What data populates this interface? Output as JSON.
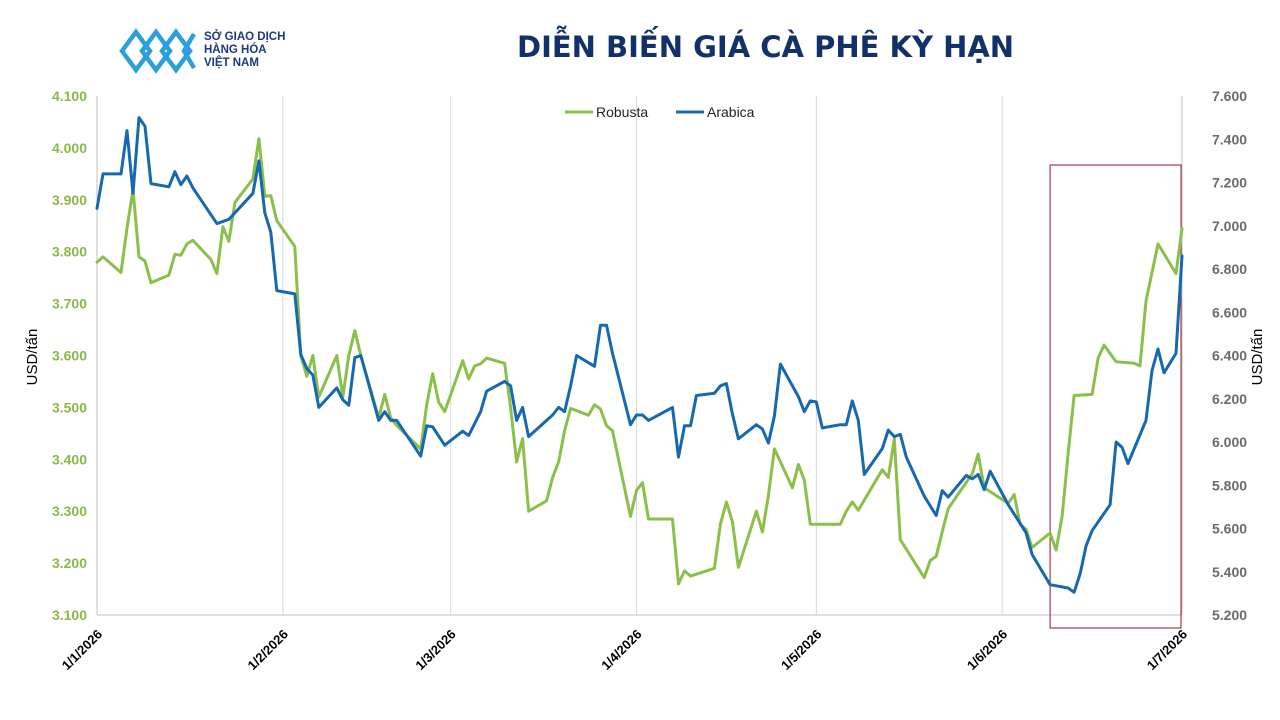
{
  "logo": {
    "line1": "SỞ GIAO DỊCH",
    "line2": "HÀNG HÓA",
    "line3": "VIỆT NAM"
  },
  "colors": {
    "robusta": "#8cbf4a",
    "arabica": "#1668b0",
    "highlight": "#a83a48",
    "grid": "#d9d9d9",
    "title": "#12316b"
  },
  "chart_data": {
    "type": "line",
    "title": "DIỄN BIẾN GIÁ CÀ PHÊ KỲ HẠN",
    "xlabel": "",
    "ylabel_left": "USD/tấn",
    "ylabel_right": "USD/tấn",
    "xlim": [
      "2026-01-01",
      "2026-07-01"
    ],
    "ylim_left": [
      3100,
      4100
    ],
    "ylim_right": [
      5200,
      7600
    ],
    "y_ticks_left": [
      "3.100",
      "3.200",
      "3.300",
      "3.400",
      "3.500",
      "3.600",
      "3.700",
      "3.800",
      "3.900",
      "4.000",
      "4.100"
    ],
    "y_ticks_right": [
      "5.200",
      "5.400",
      "5.600",
      "5.800",
      "6.000",
      "6.200",
      "6.400",
      "6.600",
      "6.800",
      "7.000",
      "7.200",
      "7.400",
      "7.600"
    ],
    "x_ticks": [
      {
        "label": "1/1/2026",
        "date": "2026-01-01"
      },
      {
        "label": "1/2/2026",
        "date": "2026-02-01"
      },
      {
        "label": "1/3/2026",
        "date": "2026-03-01"
      },
      {
        "label": "1/4/2026",
        "date": "2026-04-01"
      },
      {
        "label": "1/5/2026",
        "date": "2026-05-01"
      },
      {
        "label": "1/6/2026",
        "date": "2026-06-01"
      },
      {
        "label": "1/7/2026",
        "date": "2026-07-01"
      }
    ],
    "grid": "vertical",
    "legend": "top-center",
    "highlight_range": {
      "from": "2026-06-09",
      "to": "2026-06-30"
    },
    "series": [
      {
        "name": "Robusta",
        "axis": "left",
        "points": [
          [
            "2026-01-01",
            3780
          ],
          [
            "2026-01-02",
            3790
          ],
          [
            "2026-01-05",
            3760
          ],
          [
            "2026-01-06",
            3845
          ],
          [
            "2026-01-07",
            3920
          ],
          [
            "2026-01-08",
            3790
          ],
          [
            "2026-01-09",
            3782
          ],
          [
            "2026-01-10",
            3740
          ],
          [
            "2026-01-13",
            3755
          ],
          [
            "2026-01-14",
            3795
          ],
          [
            "2026-01-15",
            3793
          ],
          [
            "2026-01-16",
            3815
          ],
          [
            "2026-01-17",
            3822
          ],
          [
            "2026-01-20",
            3785
          ],
          [
            "2026-01-21",
            3758
          ],
          [
            "2026-01-22",
            3848
          ],
          [
            "2026-01-23",
            3820
          ],
          [
            "2026-01-24",
            3895
          ],
          [
            "2026-01-27",
            3940
          ],
          [
            "2026-01-28",
            4018
          ],
          [
            "2026-01-29",
            3907
          ],
          [
            "2026-01-30",
            3908
          ],
          [
            "2026-01-31",
            3860
          ],
          [
            "2026-02-03",
            3810
          ],
          [
            "2026-02-04",
            3600
          ],
          [
            "2026-02-05",
            3560
          ],
          [
            "2026-02-06",
            3600
          ],
          [
            "2026-02-07",
            3520
          ],
          [
            "2026-02-10",
            3600
          ],
          [
            "2026-02-11",
            3520
          ],
          [
            "2026-02-12",
            3600
          ],
          [
            "2026-02-13",
            3648
          ],
          [
            "2026-02-14",
            3600
          ],
          [
            "2026-02-17",
            3480
          ],
          [
            "2026-02-18",
            3525
          ],
          [
            "2026-02-19",
            3480
          ],
          [
            "2026-02-20",
            3465
          ],
          [
            "2026-02-24",
            3420
          ],
          [
            "2026-02-25",
            3505
          ],
          [
            "2026-02-26",
            3565
          ],
          [
            "2026-02-27",
            3510
          ],
          [
            "2026-02-28",
            3492
          ],
          [
            "2026-03-03",
            3590
          ],
          [
            "2026-03-04",
            3555
          ],
          [
            "2026-03-05",
            3580
          ],
          [
            "2026-03-06",
            3584
          ],
          [
            "2026-03-07",
            3595
          ],
          [
            "2026-03-10",
            3585
          ],
          [
            "2026-03-11",
            3500
          ],
          [
            "2026-03-12",
            3395
          ],
          [
            "2026-03-13",
            3440
          ],
          [
            "2026-03-14",
            3300
          ],
          [
            "2026-03-17",
            3320
          ],
          [
            "2026-03-18",
            3365
          ],
          [
            "2026-03-19",
            3395
          ],
          [
            "2026-03-20",
            3455
          ],
          [
            "2026-03-21",
            3498
          ],
          [
            "2026-03-24",
            3485
          ],
          [
            "2026-03-25",
            3505
          ],
          [
            "2026-03-26",
            3497
          ],
          [
            "2026-03-27",
            3465
          ],
          [
            "2026-03-28",
            3455
          ],
          [
            "2026-03-31",
            3290
          ],
          [
            "2026-04-01",
            3340
          ],
          [
            "2026-04-02",
            3355
          ],
          [
            "2026-04-03",
            3285
          ],
          [
            "2026-04-07",
            3285
          ],
          [
            "2026-04-08",
            3160
          ],
          [
            "2026-04-09",
            3185
          ],
          [
            "2026-04-10",
            3175
          ],
          [
            "2026-04-14",
            3190
          ],
          [
            "2026-04-15",
            3275
          ],
          [
            "2026-04-16",
            3318
          ],
          [
            "2026-04-17",
            3280
          ],
          [
            "2026-04-18",
            3192
          ],
          [
            "2026-04-21",
            3300
          ],
          [
            "2026-04-22",
            3260
          ],
          [
            "2026-04-23",
            3330
          ],
          [
            "2026-04-24",
            3420
          ],
          [
            "2026-04-27",
            3345
          ],
          [
            "2026-04-28",
            3390
          ],
          [
            "2026-04-29",
            3360
          ],
          [
            "2026-04-30",
            3275
          ],
          [
            "2026-05-05",
            3275
          ],
          [
            "2026-05-06",
            3300
          ],
          [
            "2026-05-07",
            3318
          ],
          [
            "2026-05-08",
            3302
          ],
          [
            "2026-05-12",
            3380
          ],
          [
            "2026-05-13",
            3365
          ],
          [
            "2026-05-14",
            3440
          ],
          [
            "2026-05-15",
            3245
          ],
          [
            "2026-05-19",
            3172
          ],
          [
            "2026-05-20",
            3205
          ],
          [
            "2026-05-21",
            3213
          ],
          [
            "2026-05-22",
            3260
          ],
          [
            "2026-05-23",
            3305
          ],
          [
            "2026-05-27",
            3372
          ],
          [
            "2026-05-28",
            3410
          ],
          [
            "2026-05-29",
            3345
          ],
          [
            "2026-06-02",
            3315
          ],
          [
            "2026-06-03",
            3332
          ],
          [
            "2026-06-04",
            3275
          ],
          [
            "2026-06-05",
            3265
          ],
          [
            "2026-06-06",
            3230
          ],
          [
            "2026-06-09",
            3258
          ],
          [
            "2026-06-10",
            3225
          ],
          [
            "2026-06-11",
            3290
          ],
          [
            "2026-06-12",
            3410
          ],
          [
            "2026-06-13",
            3523
          ],
          [
            "2026-06-16",
            3525
          ],
          [
            "2026-06-17",
            3595
          ],
          [
            "2026-06-18",
            3620
          ],
          [
            "2026-06-20",
            3588
          ],
          [
            "2026-06-23",
            3585
          ],
          [
            "2026-06-24",
            3580
          ],
          [
            "2026-06-25",
            3705
          ],
          [
            "2026-06-27",
            3815
          ],
          [
            "2026-06-30",
            3758
          ],
          [
            "2026-07-01",
            3845
          ]
        ]
      },
      {
        "name": "Arabica",
        "axis": "right",
        "points": [
          [
            "2026-01-01",
            7080
          ],
          [
            "2026-01-02",
            7240
          ],
          [
            "2026-01-05",
            7240
          ],
          [
            "2026-01-06",
            7440
          ],
          [
            "2026-01-07",
            7150
          ],
          [
            "2026-01-08",
            7500
          ],
          [
            "2026-01-09",
            7460
          ],
          [
            "2026-01-10",
            7195
          ],
          [
            "2026-01-13",
            7180
          ],
          [
            "2026-01-14",
            7250
          ],
          [
            "2026-01-15",
            7190
          ],
          [
            "2026-01-16",
            7230
          ],
          [
            "2026-01-17",
            7175
          ],
          [
            "2026-01-21",
            7010
          ],
          [
            "2026-01-23",
            7030
          ],
          [
            "2026-01-27",
            7150
          ],
          [
            "2026-01-28",
            7300
          ],
          [
            "2026-01-29",
            7060
          ],
          [
            "2026-01-30",
            6970
          ],
          [
            "2026-01-31",
            6700
          ],
          [
            "2026-02-03",
            6685
          ],
          [
            "2026-02-04",
            6405
          ],
          [
            "2026-02-05",
            6340
          ],
          [
            "2026-02-06",
            6310
          ],
          [
            "2026-02-07",
            6160
          ],
          [
            "2026-02-10",
            6250
          ],
          [
            "2026-02-11",
            6195
          ],
          [
            "2026-02-12",
            6170
          ],
          [
            "2026-02-13",
            6390
          ],
          [
            "2026-02-14",
            6400
          ],
          [
            "2026-02-17",
            6100
          ],
          [
            "2026-02-18",
            6140
          ],
          [
            "2026-02-19",
            6100
          ],
          [
            "2026-02-20",
            6100
          ],
          [
            "2026-02-24",
            5935
          ],
          [
            "2026-02-25",
            6075
          ],
          [
            "2026-02-26",
            6070
          ],
          [
            "2026-02-28",
            5985
          ],
          [
            "2026-03-03",
            6050
          ],
          [
            "2026-03-04",
            6030
          ],
          [
            "2026-03-06",
            6140
          ],
          [
            "2026-03-07",
            6235
          ],
          [
            "2026-03-10",
            6280
          ],
          [
            "2026-03-11",
            6260
          ],
          [
            "2026-03-12",
            6100
          ],
          [
            "2026-03-13",
            6160
          ],
          [
            "2026-03-14",
            6025
          ],
          [
            "2026-03-18",
            6125
          ],
          [
            "2026-03-19",
            6160
          ],
          [
            "2026-03-20",
            6140
          ],
          [
            "2026-03-21",
            6260
          ],
          [
            "2026-03-22",
            6400
          ],
          [
            "2026-03-25",
            6350
          ],
          [
            "2026-03-26",
            6540
          ],
          [
            "2026-03-27",
            6540
          ],
          [
            "2026-03-28",
            6410
          ],
          [
            "2026-03-31",
            6080
          ],
          [
            "2026-04-01",
            6125
          ],
          [
            "2026-04-02",
            6125
          ],
          [
            "2026-04-03",
            6100
          ],
          [
            "2026-04-07",
            6160
          ],
          [
            "2026-04-08",
            5930
          ],
          [
            "2026-04-09",
            6075
          ],
          [
            "2026-04-10",
            6075
          ],
          [
            "2026-04-11",
            6215
          ],
          [
            "2026-04-14",
            6225
          ],
          [
            "2026-04-15",
            6260
          ],
          [
            "2026-04-16",
            6270
          ],
          [
            "2026-04-17",
            6130
          ],
          [
            "2026-04-18",
            6015
          ],
          [
            "2026-04-21",
            6080
          ],
          [
            "2026-04-22",
            6060
          ],
          [
            "2026-04-23",
            5995
          ],
          [
            "2026-04-24",
            6120
          ],
          [
            "2026-04-25",
            6360
          ],
          [
            "2026-04-28",
            6210
          ],
          [
            "2026-04-29",
            6140
          ],
          [
            "2026-04-30",
            6190
          ],
          [
            "2026-05-01",
            6185
          ],
          [
            "2026-05-02",
            6065
          ],
          [
            "2026-05-05",
            6080
          ],
          [
            "2026-05-06",
            6080
          ],
          [
            "2026-05-07",
            6190
          ],
          [
            "2026-05-08",
            6100
          ],
          [
            "2026-05-09",
            5850
          ],
          [
            "2026-05-12",
            5970
          ],
          [
            "2026-05-13",
            6055
          ],
          [
            "2026-05-14",
            6025
          ],
          [
            "2026-05-15",
            6035
          ],
          [
            "2026-05-16",
            5930
          ],
          [
            "2026-05-19",
            5750
          ],
          [
            "2026-05-21",
            5660
          ],
          [
            "2026-05-22",
            5775
          ],
          [
            "2026-05-23",
            5745
          ],
          [
            "2026-05-26",
            5845
          ],
          [
            "2026-05-27",
            5830
          ],
          [
            "2026-05-28",
            5850
          ],
          [
            "2026-05-29",
            5780
          ],
          [
            "2026-05-30",
            5865
          ],
          [
            "2026-06-02",
            5710
          ],
          [
            "2026-06-05",
            5580
          ],
          [
            "2026-06-06",
            5480
          ],
          [
            "2026-06-09",
            5340
          ],
          [
            "2026-06-12",
            5325
          ],
          [
            "2026-06-13",
            5305
          ],
          [
            "2026-06-14",
            5390
          ],
          [
            "2026-06-15",
            5520
          ],
          [
            "2026-06-16",
            5590
          ],
          [
            "2026-06-19",
            5710
          ],
          [
            "2026-06-20",
            6000
          ],
          [
            "2026-06-21",
            5975
          ],
          [
            "2026-06-22",
            5900
          ],
          [
            "2026-06-25",
            6100
          ],
          [
            "2026-06-26",
            6330
          ],
          [
            "2026-06-27",
            6430
          ],
          [
            "2026-06-28",
            6320
          ],
          [
            "2026-06-30",
            6410
          ],
          [
            "2026-07-01",
            6860
          ]
        ]
      }
    ]
  }
}
